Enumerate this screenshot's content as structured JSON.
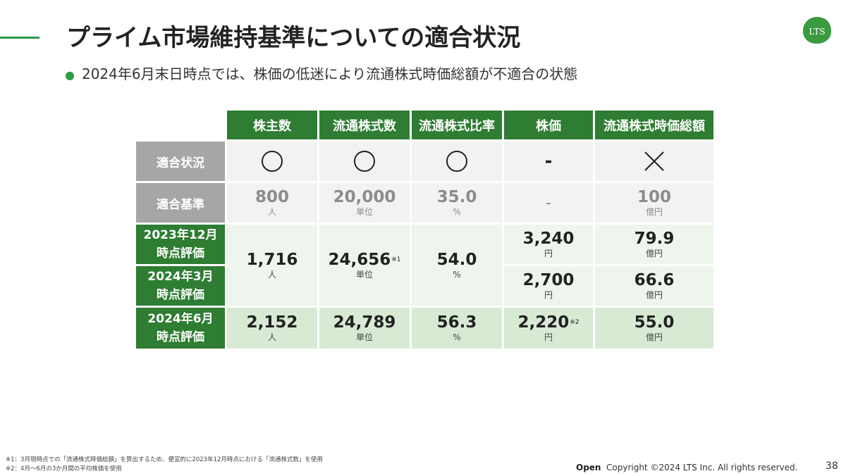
{
  "title": "プライム市場維持基準についての適合状況",
  "bullet": "2024年6月末日時点では、株価の低迷により流通株式時価総額が不適合の状態",
  "logo_text": "LTS",
  "table": {
    "columns": [
      "株主数",
      "流通株式数",
      "流通株式比率",
      "株価",
      "流通株式時価総額"
    ],
    "rows": {
      "status": {
        "label": "適合状況",
        "marks": [
          "○",
          "○",
          "○",
          "-",
          "×"
        ]
      },
      "criteria": {
        "label": "適合基準",
        "values": [
          "800",
          "20,000",
          "35.0",
          "-",
          "100"
        ],
        "units": [
          "人",
          "単位",
          "%",
          "",
          "億円"
        ]
      },
      "dec2023": {
        "label_line1": "2023年12月",
        "label_line2": "時点評価",
        "price": "3,240",
        "price_unit": "円",
        "mcap": "79.9",
        "mcap_unit": "億円"
      },
      "mar2024": {
        "label_line1": "2024年3月",
        "label_line2": "時点評価",
        "price": "2,700",
        "price_unit": "円",
        "mcap": "66.6",
        "mcap_unit": "億円"
      },
      "merged_dec_mar": {
        "shareholders": "1,716",
        "shareholders_unit": "人",
        "shares": "24,656",
        "shares_note": "※1",
        "shares_unit": "単位",
        "ratio": "54.0",
        "ratio_unit": "%"
      },
      "jun2024": {
        "label_line1": "2024年6月",
        "label_line2": "時点評価",
        "shareholders": "2,152",
        "shareholders_unit": "人",
        "shares": "24,789",
        "shares_unit": "単位",
        "ratio": "56.3",
        "ratio_unit": "%",
        "price": "2,220",
        "price_note": "※2",
        "price_unit": "円",
        "mcap": "55.0",
        "mcap_unit": "億円"
      }
    }
  },
  "footnotes": [
    "※1：3月現時点での「流通株式時価総額」を算出するため、便宜的に2023年12月時点における「流通株式数」を使用",
    "※2：4月～6月の3か月間の平均株価を使用"
  ],
  "footer": {
    "open": "Open",
    "copyright": "Copyright ©2024 LTS Inc. All rights reserved.",
    "page": "38"
  },
  "colors": {
    "accent": "#2e9a46",
    "header_green": "#2e7d32",
    "row_gray": "#a6a6a6"
  }
}
